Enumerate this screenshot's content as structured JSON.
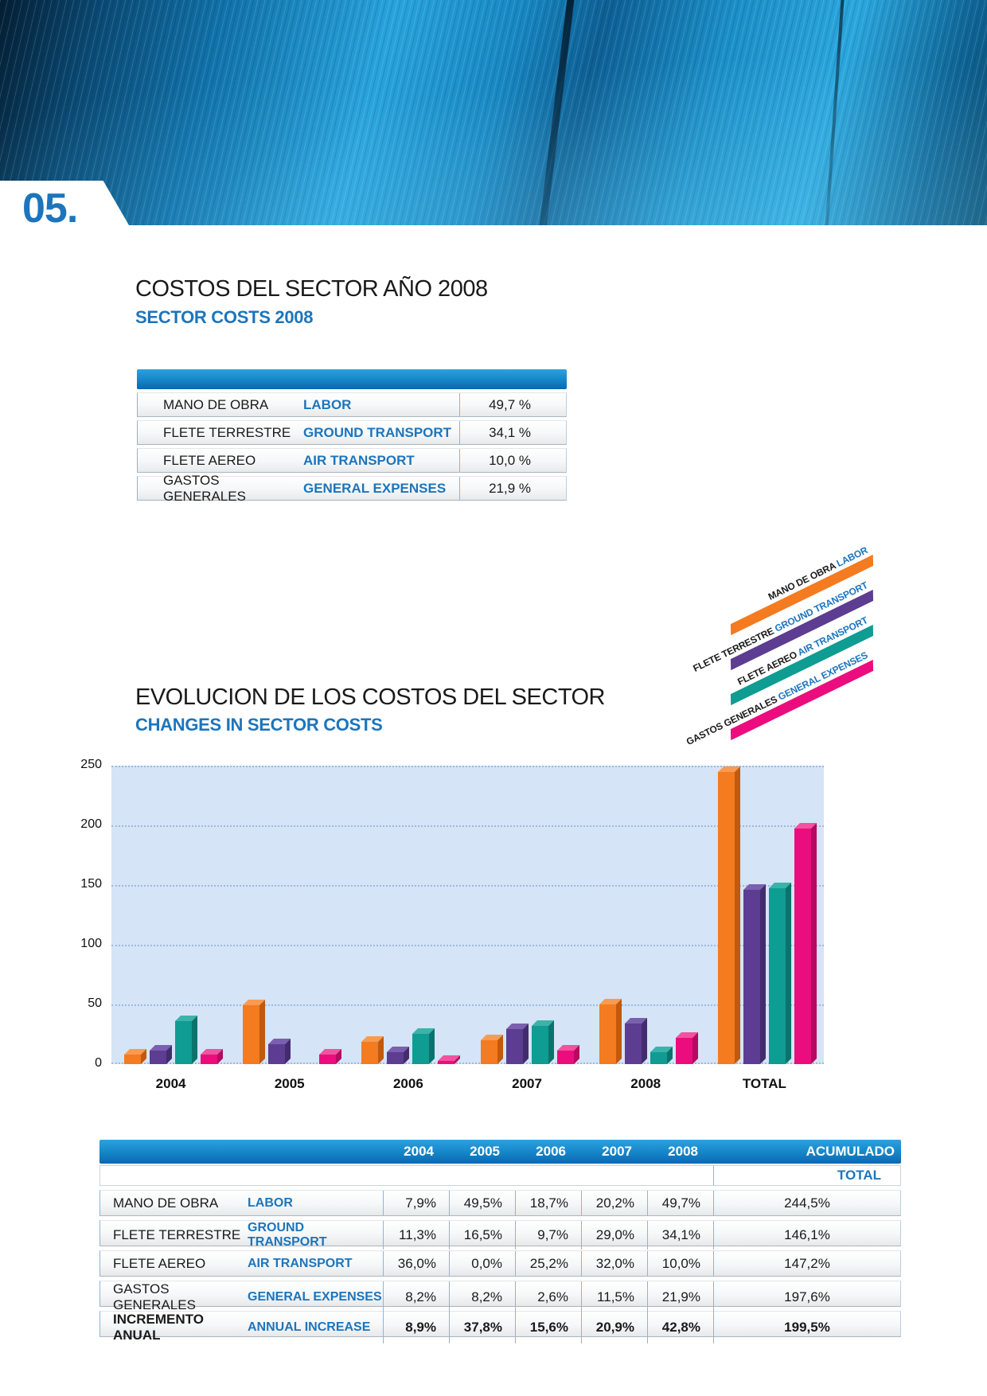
{
  "page": {
    "section_number": "05.",
    "accent_color": "#1C75BC"
  },
  "section1": {
    "title": "COSTOS DEL SECTOR AÑO 2008",
    "subtitle": "SECTOR COSTS 2008",
    "table": {
      "rows": [
        {
          "es": "MANO DE OBRA",
          "en": "LABOR",
          "value": "49,7 %"
        },
        {
          "es": "FLETE TERRESTRE",
          "en": "GROUND TRANSPORT",
          "value": "34,1 %"
        },
        {
          "es": "FLETE AEREO",
          "en": "AIR TRANSPORT",
          "value": "10,0 %"
        },
        {
          "es": "GASTOS GENERALES",
          "en": "GENERAL EXPENSES",
          "value": "21,9 %"
        }
      ]
    }
  },
  "legend": {
    "items": [
      {
        "es": "MANO DE OBRA",
        "en": "LABOR",
        "color": "#F47B20"
      },
      {
        "es": "FLETE TERRESTRE",
        "en": "GROUND TRANSPORT",
        "color": "#5C3D92"
      },
      {
        "es": "FLETE AEREO",
        "en": "AIR TRANSPORT",
        "color": "#0F9C92"
      },
      {
        "es": "GASTOS GENERALES",
        "en": "GENERAL EXPENSES",
        "color": "#EB0D7E"
      }
    ]
  },
  "section2": {
    "title": "EVOLUCION DE LOS COSTOS DEL SECTOR",
    "subtitle": "CHANGES IN SECTOR COSTS"
  },
  "chart_data": {
    "type": "bar",
    "categories": [
      "2004",
      "2005",
      "2006",
      "2007",
      "2008",
      "TOTAL"
    ],
    "series": [
      {
        "key": "labor",
        "name": "MANO DE OBRA / LABOR",
        "color": "#F47B20",
        "dark": "#C05A0E",
        "light": "#F89B51",
        "values": [
          7.9,
          49.5,
          18.7,
          20.2,
          49.7,
          244.5
        ]
      },
      {
        "key": "ground-transport",
        "name": "FLETE TERRESTRE / GROUND TRANSPORT",
        "color": "#5C3D92",
        "dark": "#432C6E",
        "light": "#7B5FB0",
        "values": [
          11.3,
          16.5,
          9.7,
          29.0,
          34.1,
          146.1
        ]
      },
      {
        "key": "air-transport",
        "name": "FLETE AEREO / AIR TRANSPORT",
        "color": "#0F9C92",
        "dark": "#0A746C",
        "light": "#3BB3A9",
        "values": [
          36.0,
          0.0,
          25.2,
          32.0,
          10.0,
          147.2
        ]
      },
      {
        "key": "general-expenses",
        "name": "GASTOS GENERALES / GENERAL EXPENSES",
        "color": "#EB0D7E",
        "dark": "#B50A60",
        "light": "#F2529F",
        "values": [
          8.2,
          8.2,
          2.6,
          11.5,
          21.9,
          197.6
        ]
      }
    ],
    "ylim": [
      0,
      250
    ],
    "yticks": [
      0,
      50,
      100,
      150,
      200,
      250
    ],
    "grid": true,
    "legend_position": "upper-right-diagonal",
    "plot_bg": "#D5E4F6",
    "grid_color": "#9DB9E0"
  },
  "table2": {
    "col_headers": [
      "2004",
      "2005",
      "2006",
      "2007",
      "2008",
      "ACUMULADO"
    ],
    "subheader": "TOTAL",
    "rows": [
      {
        "es": "MANO DE OBRA",
        "en": "LABOR",
        "values": [
          "7,9%",
          "49,5%",
          "18,7%",
          "20,2%",
          "49,7%",
          "244,5%"
        ]
      },
      {
        "es": "FLETE TERRESTRE",
        "en": "GROUND TRANSPORT",
        "values": [
          "11,3%",
          "16,5%",
          "9,7%",
          "29,0%",
          "34,1%",
          "146,1%"
        ]
      },
      {
        "es": "FLETE AEREO",
        "en": "AIR TRANSPORT",
        "values": [
          "36,0%",
          "0,0%",
          "25,2%",
          "32,0%",
          "10,0%",
          "147,2%"
        ]
      },
      {
        "es": "GASTOS GENERALES",
        "en": "GENERAL EXPENSES",
        "values": [
          "8,2%",
          "8,2%",
          "2,6%",
          "11,5%",
          "21,9%",
          "197,6%"
        ]
      },
      {
        "es": "INCREMENTO ANUAL",
        "en": "ANNUAL INCREASE",
        "values": [
          "8,9%",
          "37,8%",
          "15,6%",
          "20,9%",
          "42,8%",
          "199,5%"
        ]
      }
    ]
  }
}
